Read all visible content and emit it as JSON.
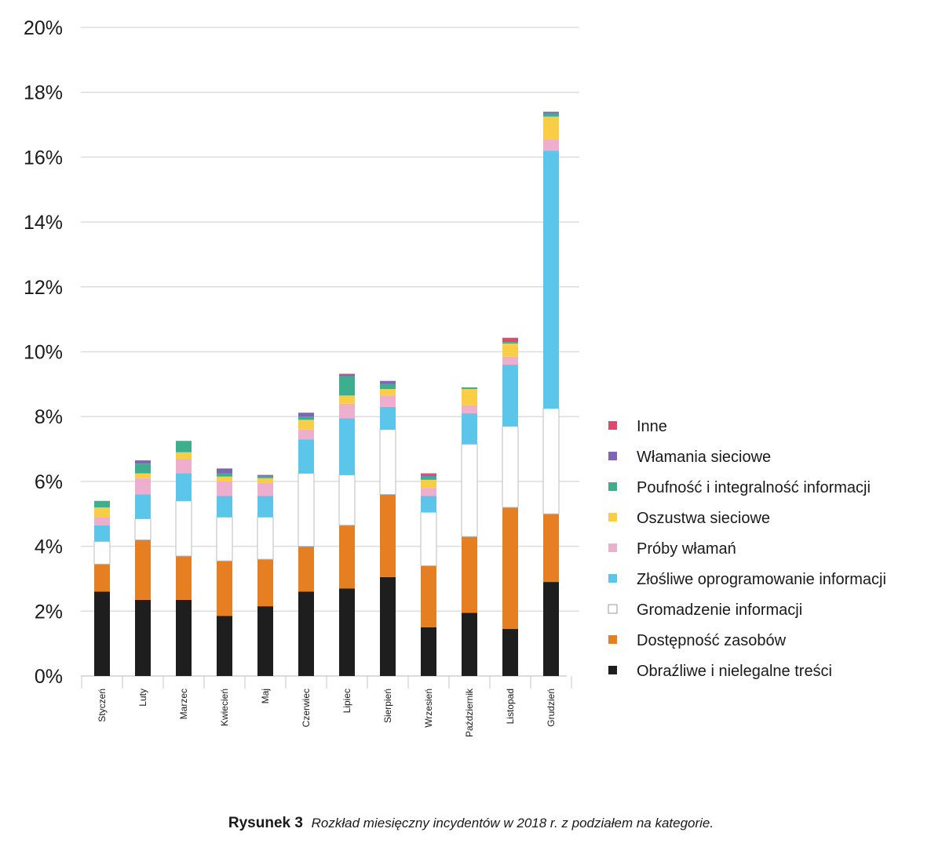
{
  "chart_data": {
    "type": "bar",
    "stacked": true,
    "ylim": [
      0,
      20
    ],
    "yticks": [
      "0%",
      "2%",
      "4%",
      "6%",
      "8%",
      "10%",
      "12%",
      "14%",
      "16%",
      "18%",
      "20%"
    ],
    "grid": true,
    "legend_position": "right",
    "categories": [
      "Styczeń",
      "Luty",
      "Marzec",
      "Kwiecień",
      "Maj",
      "Czerwiec",
      "Lipiec",
      "Sierpień",
      "Wrzesień",
      "Październik",
      "Listopad",
      "Grudzień"
    ],
    "series": [
      {
        "name": "Obraźliwe i nielegalne treści",
        "color": "#1e1e1e",
        "values": [
          2.6,
          2.35,
          2.35,
          1.85,
          2.15,
          2.6,
          2.7,
          3.05,
          1.5,
          1.95,
          1.45,
          2.9
        ]
      },
      {
        "name": "Dostępność zasobów",
        "color": "#e67e22",
        "values": [
          0.85,
          1.85,
          1.35,
          1.7,
          1.45,
          1.4,
          1.95,
          2.55,
          1.9,
          2.35,
          3.75,
          2.1
        ]
      },
      {
        "name": "Gromadzenie informacji",
        "color": "#ffffff",
        "values": [
          0.7,
          0.65,
          1.7,
          1.35,
          1.3,
          2.25,
          1.55,
          2.0,
          1.65,
          2.85,
          2.5,
          3.25
        ]
      },
      {
        "name": "Złośliwe oprogramowanie informacji",
        "color": "#5bc5ea",
        "values": [
          0.5,
          0.75,
          0.85,
          0.65,
          0.65,
          1.05,
          1.75,
          0.7,
          0.5,
          0.95,
          1.9,
          7.95
        ]
      },
      {
        "name": "Próby włamań",
        "color": "#eeaecd",
        "values": [
          0.25,
          0.5,
          0.45,
          0.45,
          0.4,
          0.3,
          0.45,
          0.35,
          0.25,
          0.25,
          0.25,
          0.35
        ]
      },
      {
        "name": "Oszustwa sieciowe",
        "color": "#f9cd45",
        "values": [
          0.3,
          0.15,
          0.2,
          0.15,
          0.15,
          0.3,
          0.25,
          0.2,
          0.25,
          0.5,
          0.4,
          0.7
        ]
      },
      {
        "name": "Poufność i integralność informacji",
        "color": "#3daf8e",
        "values": [
          0.2,
          0.3,
          0.35,
          0.1,
          0.05,
          0.1,
          0.6,
          0.15,
          0.1,
          0.05,
          0.05,
          0.1
        ]
      },
      {
        "name": "Włamania sieciowe",
        "color": "#7f66b2",
        "values": [
          0.0,
          0.1,
          0.0,
          0.15,
          0.05,
          0.12,
          0.05,
          0.1,
          0.05,
          0.0,
          0.0,
          0.05
        ]
      },
      {
        "name": "Inne",
        "color": "#e0486c",
        "values": [
          0.0,
          0.0,
          0.0,
          0.0,
          0.0,
          0.0,
          0.02,
          0.0,
          0.05,
          0.0,
          0.13,
          0.0
        ]
      }
    ],
    "legend_order": [
      "Inne",
      "Włamania sieciowe",
      "Poufność i integralność informacji",
      "Oszustwa sieciowe",
      "Próby włamań",
      "Złośliwe oprogramowanie informacji",
      "Gromadzenie informacji",
      "Dostępność zasobów",
      "Obraźliwe i nielegalne treści"
    ]
  },
  "caption": {
    "label": "Rysunek 3",
    "text": "Rozkład miesięczny incydentów w 2018 r. z podziałem na kategorie."
  }
}
